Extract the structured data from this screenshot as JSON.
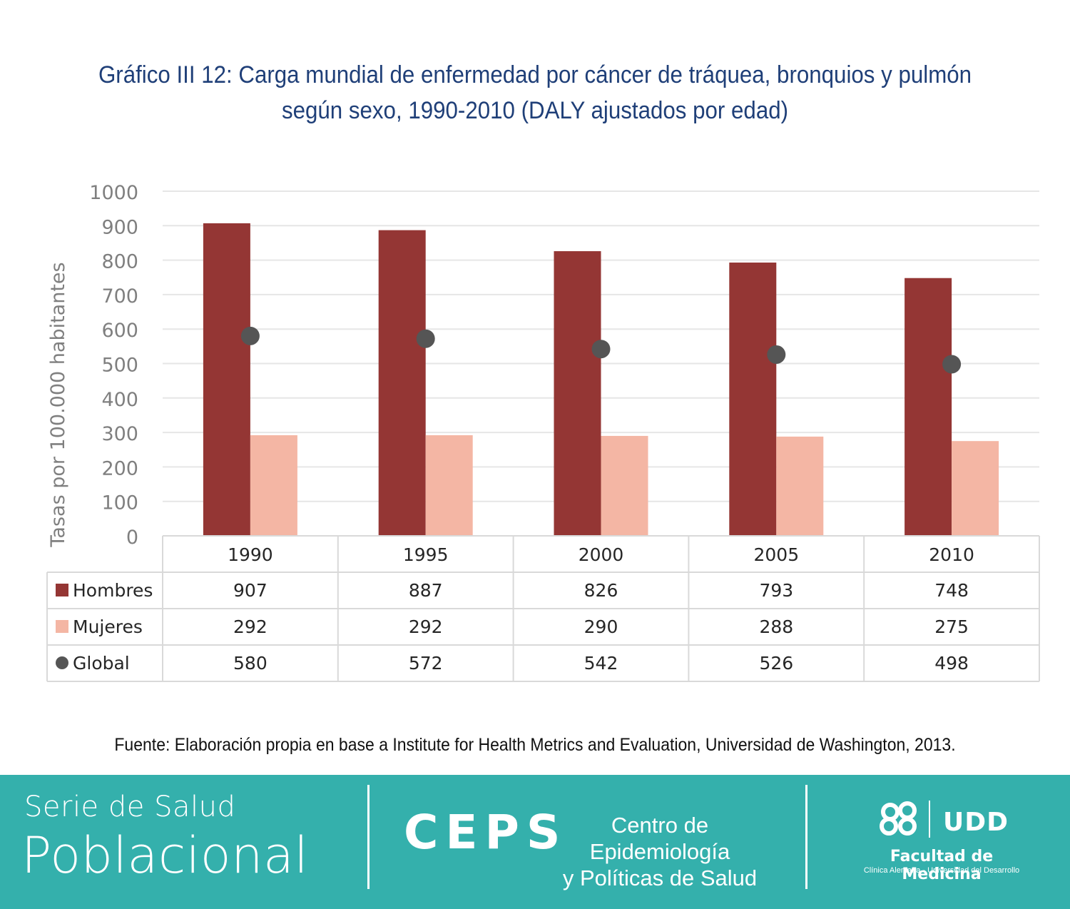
{
  "title_line1": "Gráfico III 12: Carga mundial de enfermedad por cáncer de tráquea, bronquios y pulmón",
  "title_line2": "según sexo, 1990-2010 (DALY ajustados por edad)",
  "chart_data": {
    "type": "bar",
    "categories": [
      "1990",
      "1995",
      "2000",
      "2005",
      "2010"
    ],
    "series": [
      {
        "name": "Hombres",
        "kind": "bar",
        "color": "#943634",
        "values": [
          907,
          887,
          826,
          793,
          748
        ]
      },
      {
        "name": "Mujeres",
        "kind": "bar",
        "color": "#f4b6a4",
        "values": [
          292,
          292,
          290,
          288,
          275
        ]
      },
      {
        "name": "Global",
        "kind": "marker",
        "color": "#555555",
        "values": [
          580,
          572,
          542,
          526,
          498
        ]
      }
    ],
    "ylabel": "Tasas por 100.000 habitantes",
    "ylim": [
      0,
      1000
    ],
    "yticks": [
      0,
      100,
      200,
      300,
      400,
      500,
      600,
      700,
      800,
      900,
      1000
    ],
    "grid": true,
    "legend": "data-table"
  },
  "source": "Fuente: Elaboración propia en base a Institute for Health Metrics and Evaluation, Universidad de Washington, 2013.",
  "footer": {
    "serie_line1": "Serie de Salud",
    "serie_line2": "Poblacional",
    "ceps": "CEPS",
    "ceps_line1": "Centro de Epidemiología",
    "ceps_line2": "y Políticas de Salud",
    "udd": "UDD",
    "facultad": "Facultad de Medicina",
    "facultad_sub": "Clínica Alemana - Universidad del Desarrollo",
    "logo_color": "#ffffff"
  }
}
